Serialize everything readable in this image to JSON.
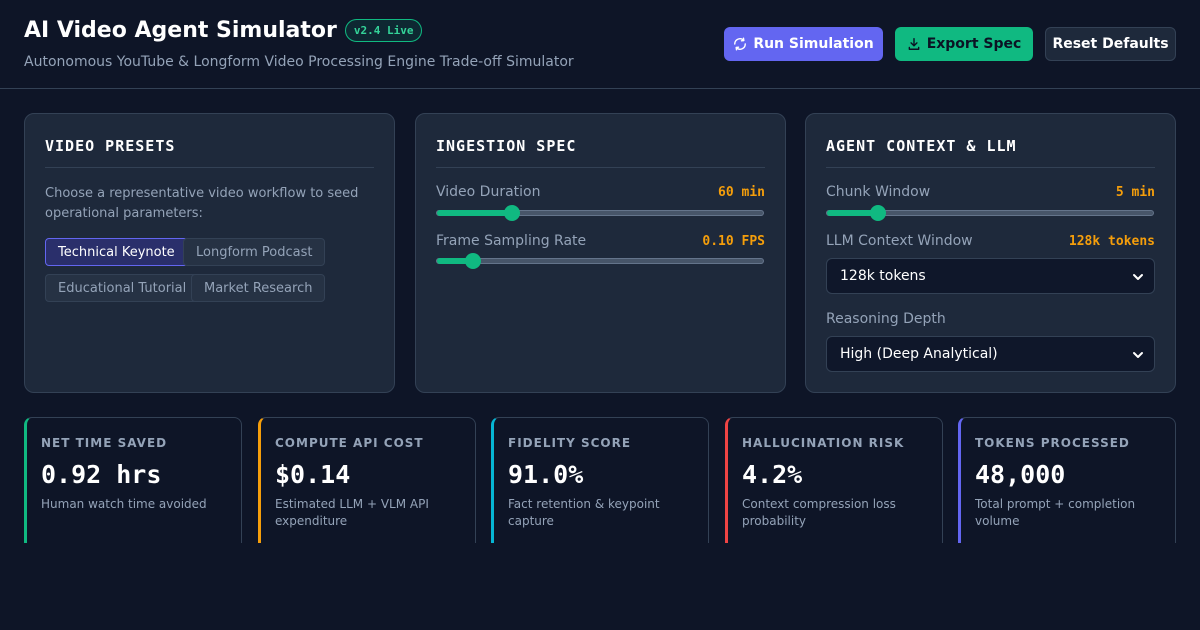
{
  "header": {
    "title": "AI Video Agent Simulator",
    "version_badge": "v2.4 Live",
    "subtitle": "Autonomous YouTube & Longform Video Processing Engine Trade-off Simulator",
    "buttons": {
      "run": "Run Simulation",
      "export": "Export Spec",
      "reset": "Reset Defaults"
    }
  },
  "presets_panel": {
    "title": "VIDEO PRESETS",
    "description": "Choose a representative video workflow to seed operational parameters:",
    "presets": [
      "Technical Keynote",
      "Longform Podcast",
      "Educational Tutorial",
      "Market Research"
    ],
    "active": "Technical Keynote"
  },
  "ingestion_panel": {
    "title": "INGESTION SPEC",
    "duration": {
      "label": "Video Duration",
      "value": "60 min",
      "fraction": 0.23
    },
    "sampling": {
      "label": "Frame Sampling Rate",
      "value": "0.10 FPS",
      "fraction": 0.11
    }
  },
  "agent_panel": {
    "title": "AGENT CONTEXT & LLM",
    "chunk": {
      "label": "Chunk Window",
      "value": "5 min",
      "fraction": 0.155
    },
    "context": {
      "label": "LLM Context Window",
      "value": "128k tokens",
      "selected": "128k tokens"
    },
    "reasoning": {
      "label": "Reasoning Depth",
      "selected": "High (Deep Analytical)"
    }
  },
  "metrics": [
    {
      "label": "NET TIME SAVED",
      "value": "0.92 hrs",
      "desc": "Human watch time avoided",
      "color": "#10b981"
    },
    {
      "label": "COMPUTE API COST",
      "value": "$0.14",
      "desc": "Estimated LLM + VLM API expenditure",
      "color": "#f59e0b"
    },
    {
      "label": "FIDELITY SCORE",
      "value": "91.0%",
      "desc": "Fact retention & keypoint capture",
      "color": "#06b6d4"
    },
    {
      "label": "HALLUCINATION RISK",
      "value": "4.2%",
      "desc": "Context compression loss probability",
      "color": "#ef4444"
    },
    {
      "label": "TOKENS PROCESSED",
      "value": "48,000",
      "desc": "Total prompt + completion volume",
      "color": "#6366f1"
    }
  ]
}
